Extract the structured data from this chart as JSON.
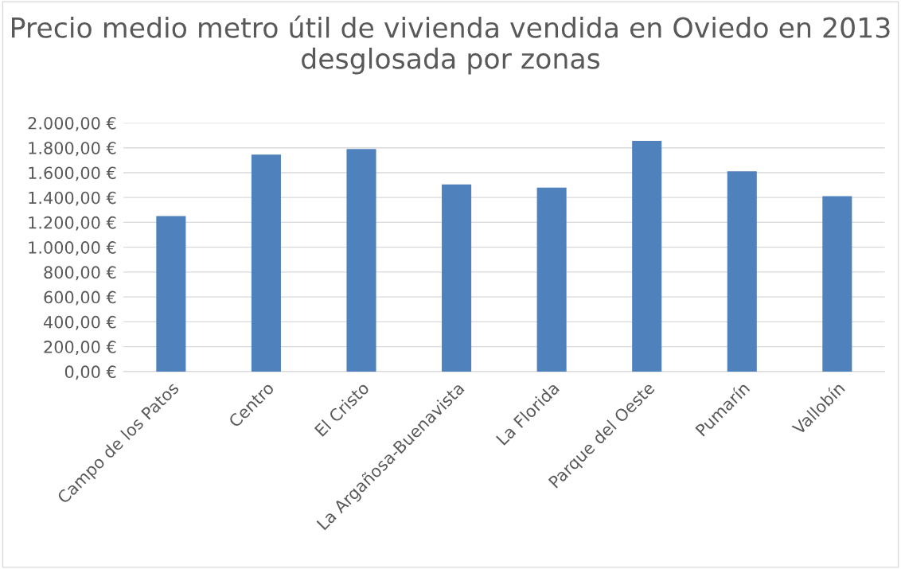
{
  "chart_data": {
    "type": "bar",
    "title": "Precio medio metro útil de vivienda vendida en Oviedo en 2013 desglosada por zonas",
    "categories": [
      "Campo de los Patos",
      "Centro",
      "El Cristo",
      "La Argañosa-Buenavista",
      "La Florida",
      "Parque del Oeste",
      "Pumarín",
      "Vallobín"
    ],
    "values": [
      1250,
      1745,
      1790,
      1505,
      1480,
      1855,
      1610,
      1410
    ],
    "color": "#4f81bd",
    "ylim": [
      0,
      2000
    ],
    "yticks": [
      {
        "value": 0,
        "label": "0,00 €"
      },
      {
        "value": 200,
        "label": "200,00 €"
      },
      {
        "value": 400,
        "label": "400,00 €"
      },
      {
        "value": 600,
        "label": "600,00 €"
      },
      {
        "value": 800,
        "label": "800,00 €"
      },
      {
        "value": 1000,
        "label": "1.000,00 €"
      },
      {
        "value": 1200,
        "label": "1.200,00 €"
      },
      {
        "value": 1400,
        "label": "1.400,00 €"
      },
      {
        "value": 1600,
        "label": "1.600,00 €"
      },
      {
        "value": 1800,
        "label": "1.800,00 €"
      },
      {
        "value": 2000,
        "label": "2.000,00 €"
      }
    ],
    "grid": "y"
  }
}
